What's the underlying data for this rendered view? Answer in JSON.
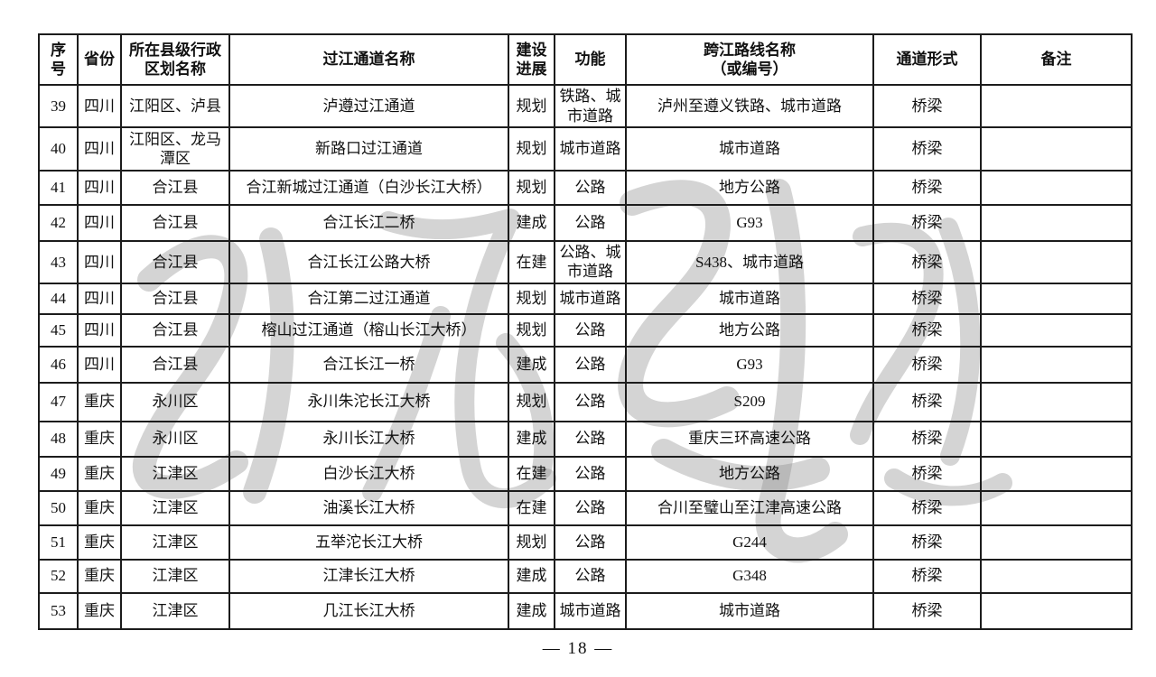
{
  "page": {
    "footer_page_label": "— 18 —"
  },
  "watermark": {
    "name": "gray-calligraphy-watermark",
    "color": "#8f8f8f",
    "opacity": 0.38
  },
  "table": {
    "column_keys": [
      "no",
      "province",
      "district",
      "channel-name",
      "progress",
      "function",
      "route",
      "form",
      "notes"
    ],
    "headers": [
      "序号",
      "省份",
      "所在县级行政区划名称",
      "过江通道名称",
      "建设\n进展",
      "功能",
      "跨江路线名称\n（或编号）",
      "通道形式",
      "备注"
    ],
    "rows": [
      [
        "39",
        "四川",
        "江阳区、泸县",
        "泸遵过江通道",
        "规划",
        "铁路、城市道路",
        "泸州至遵义铁路、城市道路",
        "桥梁",
        ""
      ],
      [
        "40",
        "四川",
        "江阳区、龙马潭区",
        "新路口过江通道",
        "规划",
        "城市道路",
        "城市道路",
        "桥梁",
        ""
      ],
      [
        "41",
        "四川",
        "合江县",
        "合江新城过江通道（白沙长江大桥）",
        "规划",
        "公路",
        "地方公路",
        "桥梁",
        ""
      ],
      [
        "42",
        "四川",
        "合江县",
        "合江长江二桥",
        "建成",
        "公路",
        "G93",
        "桥梁",
        ""
      ],
      [
        "43",
        "四川",
        "合江县",
        "合江长江公路大桥",
        "在建",
        "公路、城市道路",
        "S438、城市道路",
        "桥梁",
        ""
      ],
      [
        "44",
        "四川",
        "合江县",
        "合江第二过江通道",
        "规划",
        "城市道路",
        "城市道路",
        "桥梁",
        ""
      ],
      [
        "45",
        "四川",
        "合江县",
        "榕山过江通道（榕山长江大桥）",
        "规划",
        "公路",
        "地方公路",
        "桥梁",
        ""
      ],
      [
        "46",
        "四川",
        "合江县",
        "合江长江一桥",
        "建成",
        "公路",
        "G93",
        "桥梁",
        ""
      ],
      [
        "47",
        "重庆",
        "永川区",
        "永川朱沱长江大桥",
        "规划",
        "公路",
        "S209",
        "桥梁",
        ""
      ],
      [
        "48",
        "重庆",
        "永川区",
        "永川长江大桥",
        "建成",
        "公路",
        "重庆三环高速公路",
        "桥梁",
        ""
      ],
      [
        "49",
        "重庆",
        "江津区",
        "白沙长江大桥",
        "在建",
        "公路",
        "地方公路",
        "桥梁",
        ""
      ],
      [
        "50",
        "重庆",
        "江津区",
        "油溪长江大桥",
        "在建",
        "公路",
        "合川至璧山至江津高速公路",
        "桥梁",
        ""
      ],
      [
        "51",
        "重庆",
        "江津区",
        "五举沱长江大桥",
        "规划",
        "公路",
        "G244",
        "桥梁",
        ""
      ],
      [
        "52",
        "重庆",
        "江津区",
        "江津长江大桥",
        "建成",
        "公路",
        "G348",
        "桥梁",
        ""
      ],
      [
        "53",
        "重庆",
        "江津区",
        "几江长江大桥",
        "建成",
        "城市道路",
        "城市道路",
        "桥梁",
        ""
      ]
    ]
  }
}
